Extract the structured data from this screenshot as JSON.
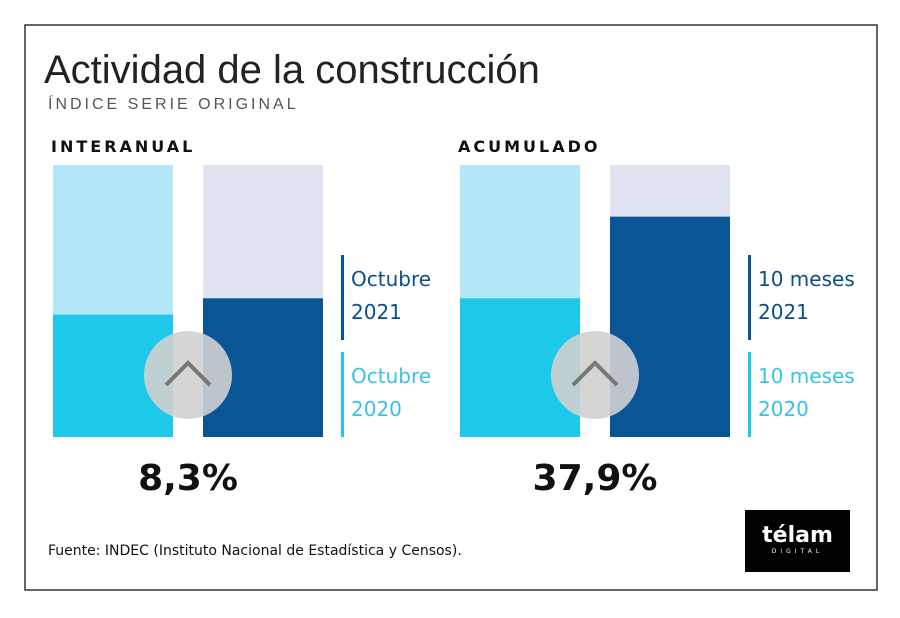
{
  "title": "Actividad de la construcción",
  "subtitle": "ÍNDICE SERIE ORIGINAL",
  "footer": "Fuente: INDEC (Instituto Nacional de Estadística y Censos).",
  "logo": {
    "name": "télam",
    "tagline": "DIGITAL"
  },
  "chart_data": [
    {
      "type": "bar",
      "title": "INTERANUAL",
      "change": "8,3%",
      "ylim": [
        0,
        100
      ],
      "series": [
        {
          "name": "Octubre 2020",
          "color": "#1ec8e8",
          "track_color": "#b3e6f6",
          "text_color": "#3cc0e4",
          "values": [
            45
          ]
        },
        {
          "name": "Octubre 2021",
          "color": "#0a5596",
          "track_color": "#dfe2f0",
          "text_color": "#0a4f8c",
          "values": [
            51
          ]
        }
      ]
    },
    {
      "type": "bar",
      "title": "ACUMULADO",
      "change": "37,9%",
      "ylim": [
        0,
        100
      ],
      "series": [
        {
          "name": "10 meses 2020",
          "color": "#1ec8e8",
          "track_color": "#b3e6f6",
          "text_color": "#3cc0e4",
          "values": [
            51
          ]
        },
        {
          "name": "10 meses 2021",
          "color": "#0a5596",
          "track_color": "#dfe2f0",
          "text_color": "#0a4f8c",
          "values": [
            81
          ]
        }
      ]
    }
  ]
}
